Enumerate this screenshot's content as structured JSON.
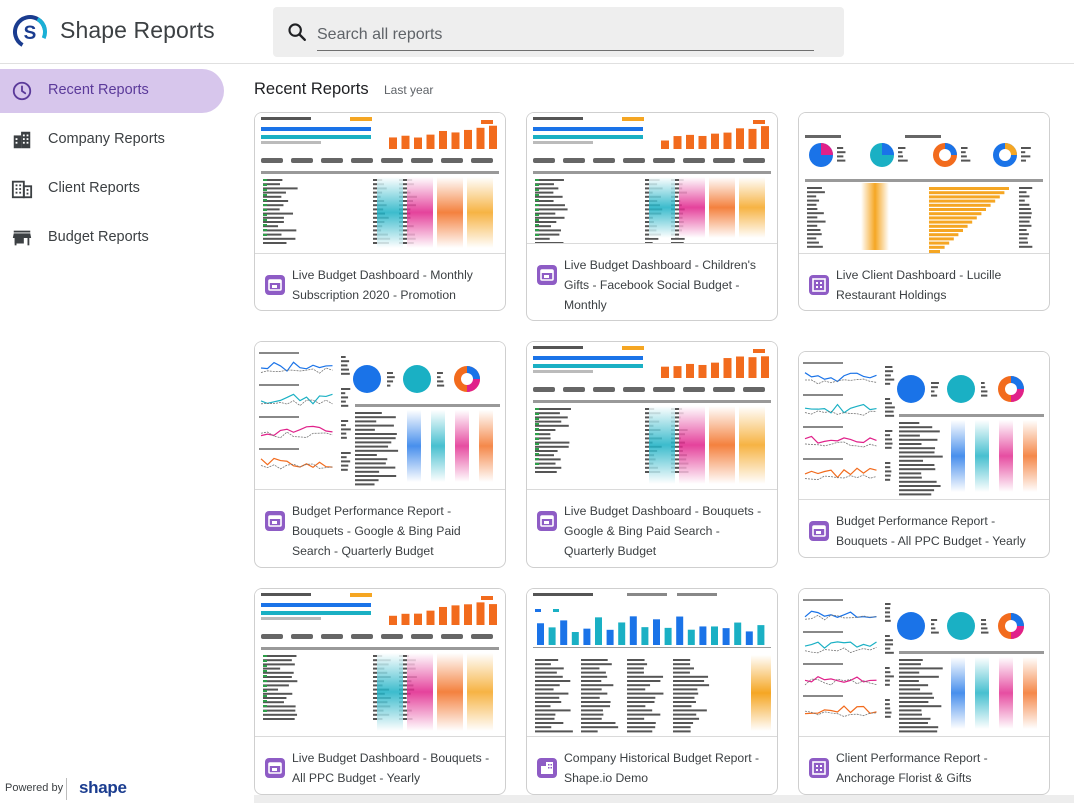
{
  "header": {
    "app_title": "Shape Reports",
    "search_placeholder": "Search all reports",
    "search_value": "",
    "logo_icon": "shape-logo-icon",
    "search_icon": "search-icon"
  },
  "sidebar": {
    "items": [
      {
        "label": "Recent Reports",
        "icon": "clock-icon",
        "active": true
      },
      {
        "label": "Company Reports",
        "icon": "company-building-icon",
        "active": false
      },
      {
        "label": "Client Reports",
        "icon": "client-building-icon",
        "active": false
      },
      {
        "label": "Budget Reports",
        "icon": "storefront-icon",
        "active": false
      }
    ],
    "powered_by": "Powered by",
    "powered_brand": "shape"
  },
  "main": {
    "title": "Recent Reports",
    "subtitle": "Last year",
    "cards": [
      {
        "title": "Live Budget Dashboard - Monthly Subscription 2020 - Promotion",
        "icon": "storefront-icon",
        "thumb": "budget"
      },
      {
        "title": "Live Budget Dashboard - Children's Gifts - Facebook Social Budget - Monthly",
        "icon": "storefront-icon",
        "thumb": "budget"
      },
      {
        "title": "Live Client Dashboard - Lucille Restaurant Holdings",
        "icon": "client-building-icon",
        "thumb": "client"
      },
      {
        "title": "Budget Performance Report - Bouquets - Google & Bing Paid Search - Quarterly Budget",
        "icon": "storefront-icon",
        "thumb": "performance"
      },
      {
        "title": "Live Budget Dashboard - Bouquets - Google & Bing Paid Search - Quarterly Budget",
        "icon": "storefront-icon",
        "thumb": "budget"
      },
      {
        "title": "Budget Performance Report - Bouquets - All PPC Budget - Yearly",
        "icon": "storefront-icon",
        "thumb": "performance"
      },
      {
        "title": "Live Budget Dashboard - Bouquets - All PPC Budget - Yearly",
        "icon": "storefront-icon",
        "thumb": "budget"
      },
      {
        "title": "Company Historical Budget Report - Shape.io Demo",
        "icon": "company-building-icon",
        "thumb": "historical"
      },
      {
        "title": "Client Performance Report - Anchorage Florist & Gifts",
        "icon": "client-building-icon",
        "thumb": "performance"
      }
    ]
  },
  "colors": {
    "accent": "#8e5cc5",
    "active_nav_bg": "#d7c6ec",
    "brand_blue": "#1a3c8f",
    "brand_cyan": "#1ab0d6",
    "chart_orange": "#f26b1d",
    "chart_blue": "#1a73e8",
    "chart_teal": "#1ab0c4",
    "chart_magenta": "#e0218a"
  }
}
